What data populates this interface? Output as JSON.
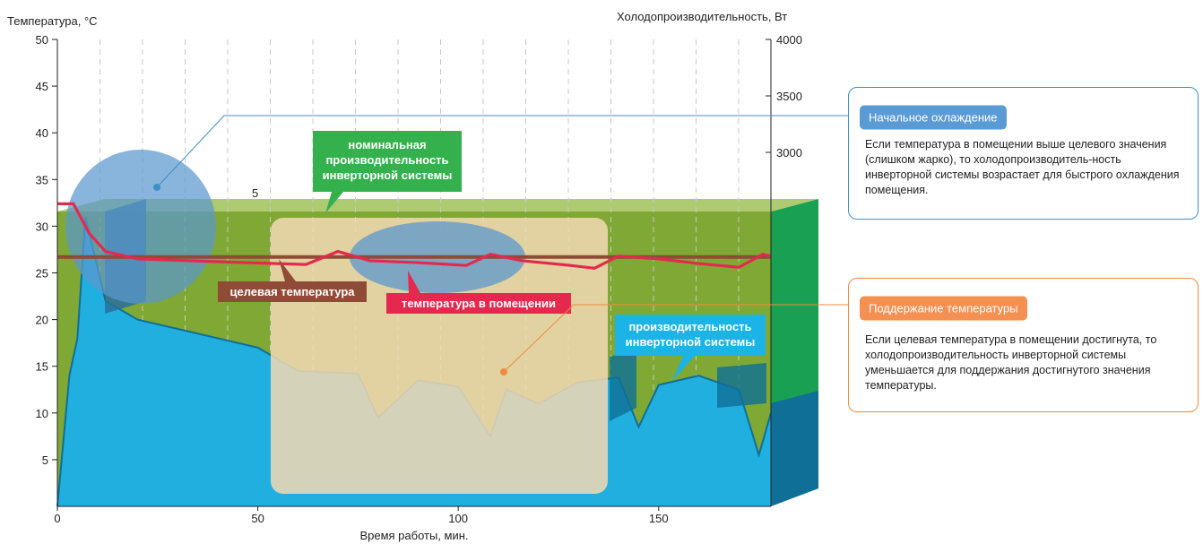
{
  "chart_data": {
    "type": "area",
    "y_left_label": "Температура, °С",
    "y_right_label": "Холодопроизводительность, Вт",
    "x_label": "Время работы, мин.",
    "x_ticks": [
      0,
      50,
      100,
      150
    ],
    "y_left_ticks": [
      5,
      10,
      15,
      20,
      25,
      30,
      35,
      40,
      45,
      50
    ],
    "y_right_ticks": [
      3000,
      3500,
      4000
    ],
    "xlim": [
      0,
      178
    ],
    "ylim_left": [
      0,
      50
    ],
    "stray_label": "5",
    "target_temperature": 26.7,
    "room_temperature": {
      "x": [
        0,
        4,
        8,
        12,
        20,
        40,
        62,
        70,
        78,
        90,
        102,
        108,
        116,
        128,
        134,
        140,
        150,
        160,
        170,
        176,
        178
      ],
      "y": [
        32.4,
        32.4,
        29.2,
        27.3,
        26.5,
        26.2,
        25.9,
        27.3,
        26.3,
        26.1,
        25.8,
        27.0,
        26.3,
        25.8,
        25.5,
        26.8,
        26.5,
        26.0,
        25.6,
        27.0,
        26.8
      ]
    },
    "capacity_profile": {
      "x": [
        0,
        3,
        5,
        7,
        12,
        20,
        30,
        50,
        60,
        75,
        80,
        90,
        100,
        108,
        112,
        120,
        130,
        140,
        145,
        150,
        160,
        170,
        175,
        178
      ],
      "y": [
        0,
        14,
        18,
        31,
        22,
        20,
        19,
        17,
        14.5,
        14.2,
        9.5,
        13.5,
        12.8,
        7.5,
        12.5,
        11,
        13.3,
        13.8,
        8.5,
        13,
        14,
        12.5,
        5.5,
        10
      ]
    },
    "series": [
      {
        "name": "температура в помещении",
        "color": "#e5294e"
      },
      {
        "name": "целевая температура",
        "color": "#8f4b36"
      },
      {
        "name": "производительность инверторной системы",
        "color": "#21afe0"
      }
    ],
    "colors": {
      "green_panel": "#7fa934",
      "green_side": "#1aa053",
      "blue_area": "#21afe0",
      "blue_dark": "#0f6f96",
      "beige_box": "#f2d8b3",
      "circle": "#5b97cd",
      "nominal_tag": "#34b14d"
    }
  },
  "labels": {
    "nominal_capacity": [
      "номинальная",
      "производительность",
      "инверторной системы"
    ],
    "target_temperature": "целевая температура",
    "room_temperature": "температура в помещении",
    "inverter_capacity": [
      "производительность",
      "инверторной системы"
    ]
  },
  "callouts": [
    {
      "title": "Начальное охлаждение",
      "text": "Если температура в помещении выше целевого значения (слишком жарко), то холодопроизводитель-ность инверторной системы возрастает для быстрого охлаждения помещения."
    },
    {
      "title": "Поддержание температуры",
      "text": "Если целевая температура в помещении достигнута, то холодопроизводительность инверторной системы уменьшается для поддержания достигнутого значения температуры."
    }
  ]
}
